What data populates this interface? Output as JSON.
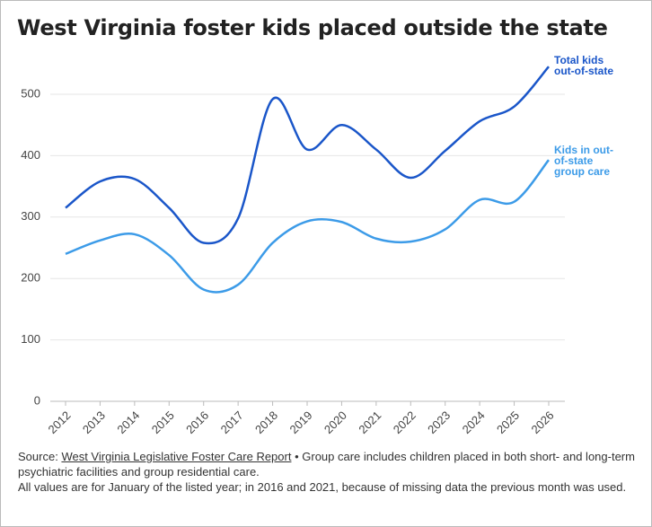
{
  "chart_data": {
    "type": "line",
    "title": "West Virginia foster kids placed outside the state",
    "categories": [
      "2012",
      "2013",
      "2014",
      "2015",
      "2016",
      "2017",
      "2018",
      "2019",
      "2020",
      "2021",
      "2022",
      "2023",
      "2024",
      "2025",
      "2026"
    ],
    "series": [
      {
        "name": "Total kids out-of-state",
        "color": "#1a56c9",
        "values": [
          315,
          358,
          362,
          315,
          258,
          298,
          492,
          410,
          450,
          410,
          364,
          408,
          456,
          480,
          545
        ]
      },
      {
        "name": "Kids in out-of-state group care",
        "color": "#3c9be8",
        "values": [
          240,
          262,
          272,
          238,
          182,
          190,
          258,
          293,
          292,
          265,
          260,
          280,
          328,
          325,
          393
        ]
      }
    ],
    "ylim": [
      0,
      560
    ],
    "yticks": [
      0,
      100,
      200,
      300,
      400,
      500
    ],
    "grid": true
  },
  "footer": {
    "source_label": "Source:",
    "source_link": "West Virginia Legislative Foster Care Report",
    "note": "• Group care includes children placed in both short- and long-term psychiatric facilities and group residential care.",
    "note2": "All values are for January of the listed year; in 2016 and 2021, because of missing data the previous month was used."
  }
}
